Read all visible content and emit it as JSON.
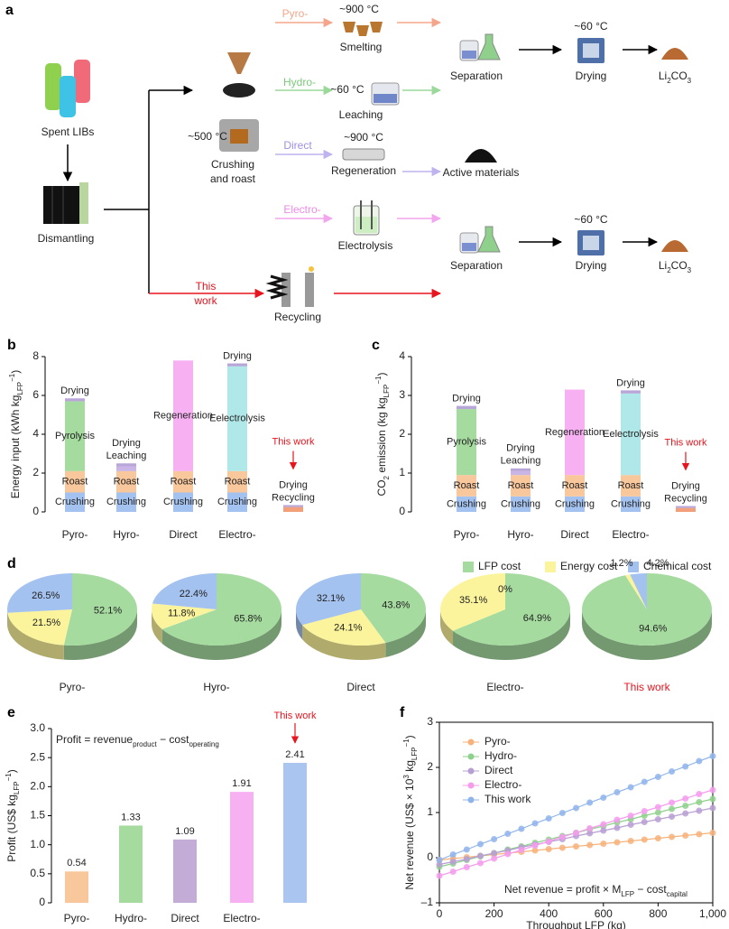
{
  "diagram": {
    "panel": "a",
    "spent_libs": "Spent LIBs",
    "dismantling": "Dismantling",
    "crushing_temp": "~500 °C",
    "crushing": [
      "Crushing",
      "and roast"
    ],
    "routes": {
      "pyro": "Pyro-",
      "hydro": "Hydro-",
      "direct": "Direct",
      "electro": "Electro-",
      "this_work": [
        "This",
        "work"
      ]
    },
    "smelting": {
      "temp": "~900 °C",
      "label": "Smelting"
    },
    "leaching": {
      "temp": "~60 °C",
      "label": "Leaching"
    },
    "regeneration": {
      "temp": "~900 °C",
      "label": "Regeneration"
    },
    "electrolysis": "Electrolysis",
    "recycling": "Recycling",
    "active_materials": "Active materials",
    "row1": {
      "separation": "Separation",
      "drying_temp": "~60 °C",
      "drying": "Drying",
      "product": [
        "Li",
        "2",
        "CO",
        "3"
      ]
    },
    "row2": {
      "separation": "Separation",
      "drying_temp": "~60 °C",
      "drying": "Drying",
      "product": [
        "Li",
        "2",
        "CO",
        "3"
      ]
    }
  },
  "chart_data": [
    {
      "panel": "b",
      "type": "stacked_bar",
      "ylabel": [
        "Energy input (kWh kg",
        "LFP",
        "−1",
        ")"
      ],
      "ylim": [
        0,
        8
      ],
      "yticks": [
        0,
        2,
        4,
        6,
        8
      ],
      "categories": [
        "Pyro-",
        "Hyro-",
        "Direct",
        "Electro-",
        null
      ],
      "annotation": "This work",
      "stacks": [
        [
          {
            "label": "Crushing",
            "value": 1.0,
            "color": "#a4c2ef"
          },
          {
            "label": "Roast",
            "value": 1.1,
            "color": "#f9c79c"
          },
          {
            "label": "Pyrolysis",
            "value": 3.6,
            "color": "#a6dba0"
          },
          {
            "label": "Drying",
            "value": 0.15,
            "color": "#b9a6d8"
          }
        ],
        [
          {
            "label": "Crushing",
            "value": 1.0,
            "color": "#a4c2ef"
          },
          {
            "label": "Roast",
            "value": 1.1,
            "color": "#f9c79c"
          },
          {
            "label": "Leaching",
            "value": 0.25,
            "color": "#c9b6e6"
          },
          {
            "label": "Drying",
            "value": 0.15,
            "color": "#b9a6d8"
          }
        ],
        [
          {
            "label": "Crushing",
            "value": 1.0,
            "color": "#a4c2ef"
          },
          {
            "label": "Roast",
            "value": 1.1,
            "color": "#f9c79c"
          },
          {
            "label": "Regeneration",
            "value": 5.7,
            "color": "#f7b0f2"
          }
        ],
        [
          {
            "label": "Crushing",
            "value": 1.0,
            "color": "#a4c2ef"
          },
          {
            "label": "Roast",
            "value": 1.1,
            "color": "#f9c79c"
          },
          {
            "label": "Eelectrolysis",
            "value": 5.4,
            "color": "#b0e8ea"
          },
          {
            "label": "Drying",
            "value": 0.15,
            "color": "#b9a6d8"
          }
        ],
        [
          {
            "label": "Recycling",
            "value": 0.25,
            "color": "#f2a07a"
          },
          {
            "label": "Drying",
            "value": 0.1,
            "color": "#b9a6d8"
          }
        ]
      ]
    },
    {
      "panel": "c",
      "type": "stacked_bar",
      "ylabel": [
        "CO",
        "2",
        " emission (kg kg",
        "LFP",
        "−1",
        ")"
      ],
      "ylim": [
        0,
        4
      ],
      "yticks": [
        0,
        1,
        2,
        3,
        4
      ],
      "categories": [
        "Pyro-",
        "Hyro-",
        "Direct",
        "Electro-",
        null
      ],
      "annotation": "This work",
      "stacks": [
        [
          {
            "label": "Crushing",
            "value": 0.4,
            "color": "#a4c2ef"
          },
          {
            "label": "Roast",
            "value": 0.55,
            "color": "#f9c79c"
          },
          {
            "label": "Pyrolysis",
            "value": 1.7,
            "color": "#a6dba0"
          },
          {
            "label": "Drying",
            "value": 0.08,
            "color": "#b9a6d8"
          }
        ],
        [
          {
            "label": "Crushing",
            "value": 0.4,
            "color": "#a4c2ef"
          },
          {
            "label": "Roast",
            "value": 0.55,
            "color": "#f9c79c"
          },
          {
            "label": "Leaching",
            "value": 0.1,
            "color": "#c9b6e6"
          },
          {
            "label": "Drying",
            "value": 0.07,
            "color": "#b9a6d8"
          }
        ],
        [
          {
            "label": "Crushing",
            "value": 0.4,
            "color": "#a4c2ef"
          },
          {
            "label": "Roast",
            "value": 0.55,
            "color": "#f9c79c"
          },
          {
            "label": "Regeneration",
            "value": 2.2,
            "color": "#f7b0f2"
          }
        ],
        [
          {
            "label": "Crushing",
            "value": 0.4,
            "color": "#a4c2ef"
          },
          {
            "label": "Roast",
            "value": 0.55,
            "color": "#f9c79c"
          },
          {
            "label": "Eelectrolysis",
            "value": 2.1,
            "color": "#b0e8ea"
          },
          {
            "label": "Drying",
            "value": 0.08,
            "color": "#b9a6d8"
          }
        ],
        [
          {
            "label": "Recycling",
            "value": 0.1,
            "color": "#f2a07a"
          },
          {
            "label": "Drying",
            "value": 0.05,
            "color": "#b9a6d8"
          }
        ]
      ]
    },
    {
      "panel": "d",
      "type": "pie",
      "series": [
        {
          "name": "LFP cost",
          "color": "#a6dba0"
        },
        {
          "name": "Energy cost",
          "color": "#fbf49c"
        },
        {
          "name": "Chemical cost",
          "color": "#a4c2ef"
        }
      ],
      "pies": [
        {
          "title": "Pyro-",
          "values": [
            52.1,
            21.5,
            26.5
          ],
          "value_labels": [
            "52.1%",
            "21.5%",
            "26.5%"
          ]
        },
        {
          "title": "Hyro-",
          "values": [
            65.8,
            11.8,
            22.4
          ],
          "value_labels": [
            "65.8%",
            "11.8%",
            "22.4%"
          ]
        },
        {
          "title": "Direct",
          "values": [
            43.8,
            24.1,
            32.1
          ],
          "value_labels": [
            "43.8%",
            "24.1%",
            "32.1%"
          ]
        },
        {
          "title": "Electro-",
          "values": [
            64.9,
            35.1,
            0
          ],
          "value_labels": [
            "64.9%",
            "35.1%",
            "0%"
          ]
        },
        {
          "title": "This work",
          "title_color": "#e8141e",
          "values": [
            94.6,
            1.2,
            4.2
          ],
          "value_labels": [
            "94.6%",
            "1.2%",
            "4.2%"
          ]
        }
      ]
    },
    {
      "panel": "e",
      "type": "bar",
      "ylabel": [
        "Profit (US$ kg",
        "LFP",
        "−1",
        ")"
      ],
      "ylim": [
        0,
        3
      ],
      "yticks": [
        0,
        0.5,
        {
          "value": 1,
          "label": "1.0"
        },
        1.5,
        {
          "value": 2,
          "label": "2.0"
        },
        2.5,
        {
          "value": 3,
          "label": "3.0"
        }
      ],
      "categories": [
        "Pyro-",
        "Hydro-",
        "Direct",
        "Electro-",
        null
      ],
      "values": [
        0.54,
        1.33,
        1.09,
        1.91,
        2.41
      ],
      "colors": [
        "#f9c79c",
        "#a6dba0",
        "#c3acd6",
        "#f7b0f2",
        "#a9c5f0"
      ],
      "annotation": "This work",
      "formula": [
        "Profit = revenue",
        "product",
        " − cost",
        "operating"
      ]
    },
    {
      "panel": "f",
      "type": "line",
      "xlabel": "Throughput LFP (kg)",
      "ylabel": [
        "Net revenue (US$ × 10",
        "3",
        " kg",
        "LFP",
        "−1",
        ")"
      ],
      "xlim": [
        0,
        1000
      ],
      "xticks": [
        0,
        200,
        400,
        600,
        800,
        {
          "value": 1000,
          "label": "1,000"
        }
      ],
      "ylim": [
        -1,
        3
      ],
      "yticks": [
        {
          "value": -1,
          "label": "–1"
        },
        0,
        1,
        2,
        3
      ],
      "legend": "upper left",
      "formula": [
        "Net revenue = profit × M",
        "LFP",
        " − cost",
        "capital"
      ],
      "x": [
        0,
        50,
        100,
        150,
        200,
        250,
        300,
        350,
        400,
        450,
        500,
        550,
        600,
        650,
        700,
        750,
        800,
        850,
        900,
        950,
        1000
      ],
      "series": [
        {
          "name": "Pyro-",
          "color": "#f7b27a",
          "values": [
            -0.05,
            -0.02,
            0.01,
            0.04,
            0.07,
            0.1,
            0.13,
            0.16,
            0.19,
            0.22,
            0.25,
            0.28,
            0.31,
            0.34,
            0.37,
            0.4,
            0.43,
            0.46,
            0.49,
            0.52,
            0.55
          ]
        },
        {
          "name": "Hydro-",
          "color": "#8fd18c",
          "values": [
            -0.2,
            -0.13,
            -0.05,
            0.03,
            0.1,
            0.18,
            0.25,
            0.33,
            0.4,
            0.48,
            0.55,
            0.63,
            0.7,
            0.78,
            0.85,
            0.93,
            1.0,
            1.08,
            1.15,
            1.23,
            1.3
          ]
        },
        {
          "name": "Direct",
          "color": "#b89fd3",
          "values": [
            -0.15,
            -0.09,
            -0.03,
            0.04,
            0.1,
            0.16,
            0.23,
            0.29,
            0.35,
            0.41,
            0.48,
            0.54,
            0.6,
            0.66,
            0.73,
            0.79,
            0.85,
            0.91,
            0.98,
            1.04,
            1.1
          ]
        },
        {
          "name": "Electro-",
          "color": "#f59ced",
          "values": [
            -0.4,
            -0.31,
            -0.21,
            -0.12,
            -0.02,
            0.08,
            0.17,
            0.27,
            0.36,
            0.46,
            0.55,
            0.65,
            0.74,
            0.84,
            0.93,
            1.03,
            1.12,
            1.22,
            1.31,
            1.41,
            1.5
          ]
        },
        {
          "name": "This work",
          "color": "#8fb4ec",
          "values": [
            -0.05,
            0.07,
            0.18,
            0.3,
            0.41,
            0.53,
            0.64,
            0.76,
            0.87,
            0.99,
            1.1,
            1.22,
            1.33,
            1.45,
            1.56,
            1.68,
            1.79,
            1.91,
            2.02,
            2.14,
            2.25
          ]
        }
      ]
    }
  ]
}
